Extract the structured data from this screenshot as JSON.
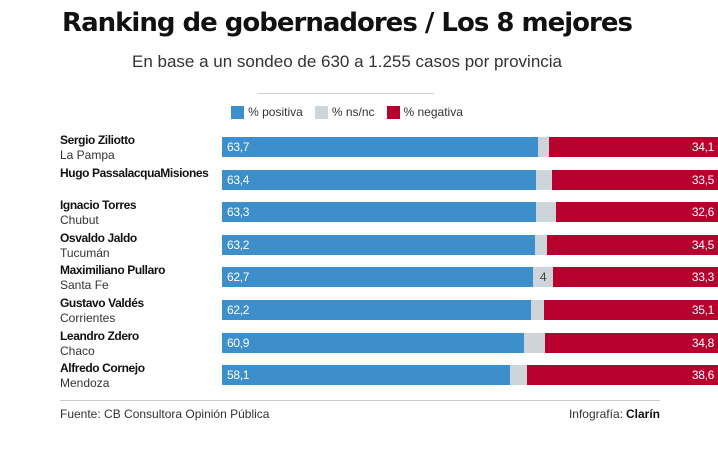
{
  "title": "Ranking de gobernadores / Los 8 mejores",
  "subtitle": "En base a un sondeo de 630 a 1.255 casos por provincia",
  "colors": {
    "positive": "#3d8fcc",
    "neutral": "#cdd4da",
    "negative": "#b8002e"
  },
  "legend": [
    {
      "key": "positive",
      "label": "% positiva"
    },
    {
      "key": "neutral",
      "label": "% ns/nc"
    },
    {
      "key": "negative",
      "label": "% negativa"
    }
  ],
  "chart_data": {
    "type": "bar",
    "stacked": true,
    "orientation": "horizontal",
    "xlim": [
      0,
      100
    ],
    "categories": [
      {
        "name": "Sergio Ziliotto",
        "province": "La Pampa"
      },
      {
        "name": "Hugo PassalacquaMisiones",
        "province": ""
      },
      {
        "name": "Ignacio Torres",
        "province": "Chubut"
      },
      {
        "name": "Osvaldo Jaldo",
        "province": "Tucumán"
      },
      {
        "name": "Maximiliano Pullaro",
        "province": "Santa Fe"
      },
      {
        "name": "Gustavo Valdés",
        "province": "Corrientes"
      },
      {
        "name": "Leandro Zdero",
        "province": "Chaco"
      },
      {
        "name": "Alfredo Cornejo",
        "province": "Mendoza"
      }
    ],
    "series": [
      {
        "name": "% positiva",
        "key": "positive",
        "values": [
          63.7,
          63.4,
          63.3,
          63.2,
          62.7,
          62.2,
          60.9,
          58.1
        ],
        "labels": [
          "63,7",
          "63,4",
          "63,3",
          "63,2",
          "62,7",
          "62,2",
          "60,9",
          "58,1"
        ]
      },
      {
        "name": "% ns/nc",
        "key": "neutral",
        "values": [
          2.2,
          3.1,
          4.1,
          2.3,
          4,
          2.7,
          4.3,
          3.3
        ],
        "labels": [
          "",
          "",
          "",
          "",
          "4",
          "",
          "",
          ""
        ]
      },
      {
        "name": "% negativa",
        "key": "negative",
        "values": [
          34.1,
          33.5,
          32.6,
          34.5,
          33.3,
          35.1,
          34.8,
          38.6
        ],
        "labels": [
          "34,1",
          "33,5",
          "32,6",
          "34,5",
          "33,3",
          "35,1",
          "34,8",
          "38,6"
        ]
      }
    ]
  },
  "footer": {
    "source": "Fuente: CB Consultora Opinión Pública",
    "credit_prefix": "Infografía:",
    "credit_brand": "Clarín"
  }
}
